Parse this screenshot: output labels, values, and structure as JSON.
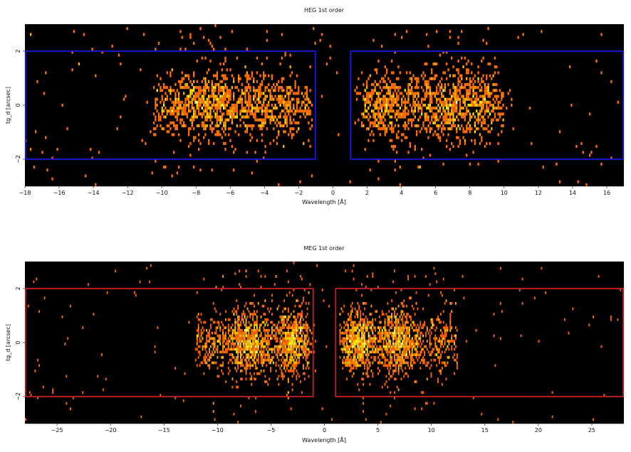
{
  "chart_data": [
    {
      "type": "heatmap",
      "title": "HEG 1st order",
      "xlabel": "Wavelength [Å]",
      "ylabel": "tg_d [arcsec]",
      "xlim": [
        -18,
        17
      ],
      "ylim": [
        -3,
        3
      ],
      "xticks": [
        -18,
        -16,
        -14,
        -12,
        -10,
        -8,
        -6,
        -4,
        -2,
        0,
        2,
        4,
        6,
        8,
        10,
        12,
        14,
        16
      ],
      "xtick_labels": [
        "−18",
        "−16",
        "−14",
        "−12",
        "−10",
        "−8",
        "−6",
        "−4",
        "−2",
        "0",
        "2",
        "4",
        "6",
        "8",
        "10",
        "12",
        "14",
        "16"
      ],
      "yticks": [
        -2,
        0,
        2
      ],
      "ytick_labels": [
        "−2",
        "0",
        "2"
      ],
      "grid": false,
      "colormap": "hot (black → red → orange → yellow → white)",
      "background": "#000000",
      "regions": [
        {
          "x": [
            -18,
            -1
          ],
          "y": [
            -2,
            2
          ],
          "color": "#1a1adc"
        },
        {
          "x": [
            1,
            17
          ],
          "y": [
            -2,
            2
          ],
          "color": "#1a1adc"
        }
      ],
      "clusters": [
        {
          "x_range": [
            -10.5,
            -1.2
          ],
          "peak_x": [
            -8,
            -6.5,
            -4
          ],
          "y_center": 0,
          "y_spread": 0.6
        },
        {
          "x_range": [
            1.8,
            10
          ],
          "peak_x": [
            3,
            6.5,
            8.2
          ],
          "y_center": 0,
          "y_spread": 0.6
        }
      ]
    },
    {
      "type": "heatmap",
      "title": "MEG 1st order",
      "xlabel": "Wavelength [Å]",
      "ylabel": "tg_d [arcsec]",
      "xlim": [
        -28,
        28
      ],
      "ylim": [
        -3,
        3
      ],
      "xticks": [
        -25,
        -20,
        -15,
        -10,
        -5,
        0,
        5,
        10,
        15,
        20,
        25
      ],
      "xtick_labels": [
        "−25",
        "−20",
        "−15",
        "−10",
        "−5",
        "0",
        "5",
        "10",
        "15",
        "20",
        "25"
      ],
      "yticks": [
        -2,
        0,
        2
      ],
      "ytick_labels": [
        "−2",
        "0",
        "2"
      ],
      "grid": false,
      "colormap": "hot (black → red → orange → yellow → white)",
      "background": "#000000",
      "regions": [
        {
          "x": [
            -28,
            -1
          ],
          "y": [
            -2,
            2
          ],
          "color": "#c81e1e"
        },
        {
          "x": [
            1,
            28
          ],
          "y": [
            -2,
            2
          ],
          "color": "#c81e1e"
        }
      ],
      "clusters": [
        {
          "x_range": [
            -12,
            -1.5
          ],
          "peak_x": [
            -7,
            -3
          ],
          "y_center": 0,
          "y_spread": 0.55
        },
        {
          "x_range": [
            2,
            12.5
          ],
          "peak_x": [
            3,
            7
          ],
          "y_center": 0,
          "y_spread": 0.55
        }
      ]
    }
  ]
}
